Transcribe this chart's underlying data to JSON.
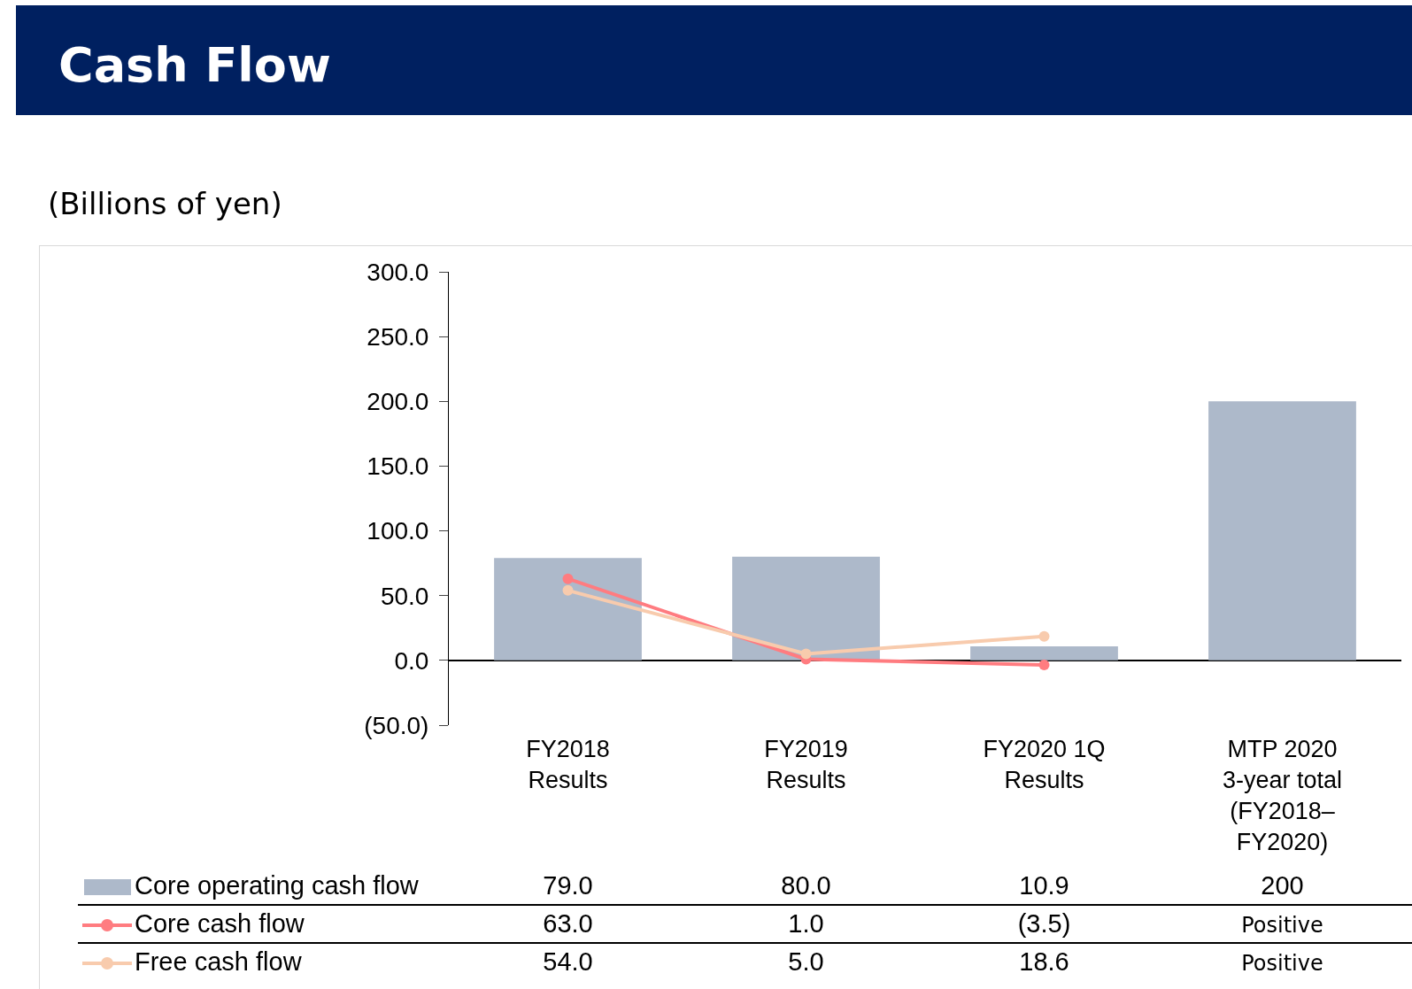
{
  "chart_data": {
    "type": "bar",
    "title": "Cash Flow",
    "subtitle": "(Billions of yen)",
    "categories": [
      "FY2018\nResults",
      "FY2019\nResults",
      "FY2020 1Q\nResults",
      "MTP 2020\n3-year total\n(FY2018–\nFY2020)"
    ],
    "series": [
      {
        "name": "Core operating cash flow",
        "color": "#adb9ca",
        "values": [
          79.0,
          80.0,
          10.9,
          200
        ],
        "value_labels": [
          "79.0",
          "80.0",
          "10.9",
          "200"
        ]
      },
      {
        "name": "Core cash flow",
        "type": "line",
        "color": "#ff7c80",
        "values": [
          63.0,
          1.0,
          -3.5,
          null
        ],
        "value_labels": [
          "63.0",
          "1.0",
          "(3.5)",
          "Positive"
        ]
      },
      {
        "name": "Free cash flow",
        "type": "line",
        "color": "#f8cbad",
        "values": [
          54.0,
          5.0,
          18.6,
          null
        ],
        "value_labels": [
          "54.0",
          "5.0",
          "18.6",
          "Positive"
        ]
      }
    ],
    "ylim": [
      -50,
      300
    ],
    "yticks": [
      {
        "value": -50,
        "label": "(50.0)"
      },
      {
        "value": 0,
        "label": "0.0"
      },
      {
        "value": 50,
        "label": "50.0"
      },
      {
        "value": 100,
        "label": "100.0"
      },
      {
        "value": 150,
        "label": "150.0"
      },
      {
        "value": 200,
        "label": "200.0"
      },
      {
        "value": 250,
        "label": "250.0"
      },
      {
        "value": 300,
        "label": "300.0"
      }
    ],
    "marker": "circle",
    "legend": "bottom"
  }
}
